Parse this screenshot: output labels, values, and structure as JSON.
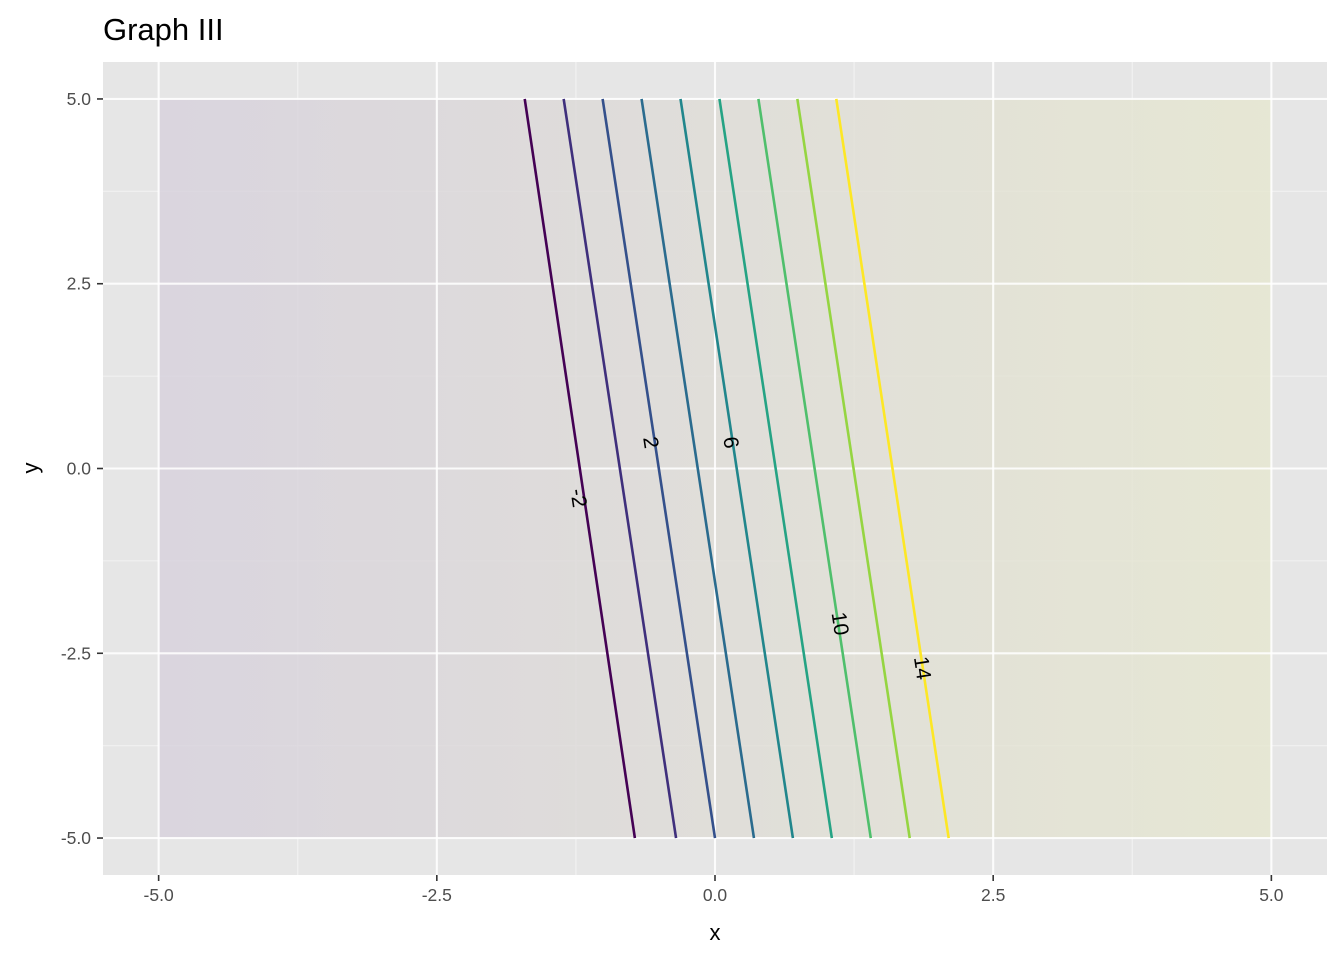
{
  "chart_data": {
    "type": "contour",
    "title": "Graph III",
    "xlabel": "x",
    "ylabel": "y",
    "xlim": [
      -5.5,
      5.5
    ],
    "ylim": [
      -5.5,
      5.5
    ],
    "data_xrange": [
      -5,
      5
    ],
    "data_yrange": [
      -5,
      5
    ],
    "x_ticks": [
      -5.0,
      -2.5,
      0.0,
      2.5,
      5.0
    ],
    "y_ticks": [
      -5.0,
      -2.5,
      0.0,
      2.5,
      5.0
    ],
    "x_tick_labels": [
      "-5.0",
      "-2.5",
      "0.0",
      "2.5",
      "5.0"
    ],
    "y_tick_labels": [
      "-5.0",
      "-2.5",
      "0.0",
      "2.5",
      "5.0"
    ],
    "grid": true,
    "legend": "none",
    "background_gradient": {
      "low_color": "#d6d0dc",
      "high_color": "#e6e7cf",
      "direction": "increasing-x"
    },
    "contours": [
      {
        "level": -2,
        "color": "#440154",
        "x_at_y_top": -1.71,
        "x_at_y_bottom": -0.72
      },
      {
        "level": 0,
        "color": "#3f2f7c",
        "x_at_y_top": -1.36,
        "x_at_y_bottom": -0.35
      },
      {
        "level": 2,
        "color": "#34508b",
        "x_at_y_top": -1.01,
        "x_at_y_bottom": 0.0
      },
      {
        "level": 4,
        "color": "#2a6b8e",
        "x_at_y_top": -0.66,
        "x_at_y_bottom": 0.35
      },
      {
        "level": 6,
        "color": "#21868c",
        "x_at_y_top": -0.31,
        "x_at_y_bottom": 0.7
      },
      {
        "level": 8,
        "color": "#25a384",
        "x_at_y_top": 0.04,
        "x_at_y_bottom": 1.05
      },
      {
        "level": 10,
        "color": "#4fbf6c",
        "x_at_y_top": 0.39,
        "x_at_y_bottom": 1.4
      },
      {
        "level": 12,
        "color": "#95d541",
        "x_at_y_top": 0.74,
        "x_at_y_bottom": 1.75
      },
      {
        "level": 14,
        "color": "#fde725",
        "x_at_y_top": 1.09,
        "x_at_y_bottom": 2.1
      }
    ],
    "contour_labels": [
      {
        "text": "-2",
        "x": -1.23,
        "y": -0.4
      },
      {
        "text": "2",
        "x": -0.58,
        "y": 0.35
      },
      {
        "text": "6",
        "x": 0.14,
        "y": 0.35
      },
      {
        "text": "10",
        "x": 1.12,
        "y": -2.1
      },
      {
        "text": "14",
        "x": 1.86,
        "y": -2.7
      }
    ],
    "colors": {
      "panel_background": "#e6e6e6",
      "grid_major": "#ffffff",
      "tick_mark": "#333333"
    }
  }
}
